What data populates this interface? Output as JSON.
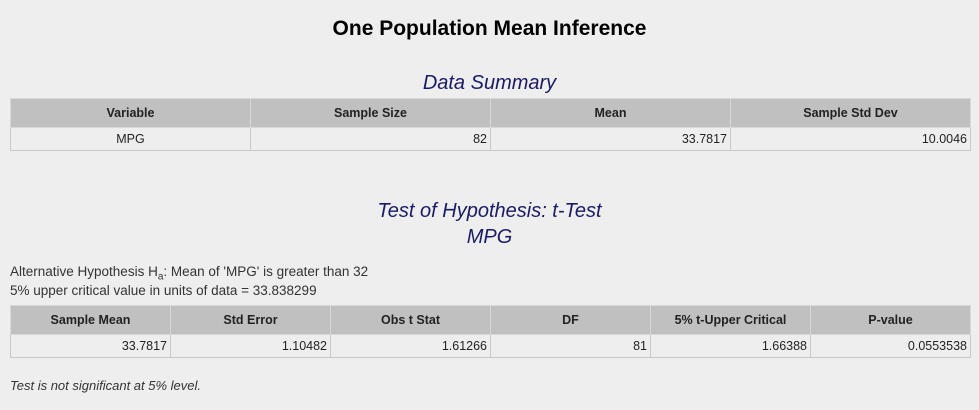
{
  "header": {
    "title": "One Population Mean Inference"
  },
  "summary": {
    "title": "Data Summary",
    "columns": [
      "Variable",
      "Sample Size",
      "Mean",
      "Sample Std Dev"
    ],
    "rows": [
      [
        "MPG",
        "82",
        "33.7817",
        "10.0046"
      ]
    ]
  },
  "test": {
    "title": "Test of Hypothesis: t-Test",
    "subtitle": "MPG",
    "hypothesis": {
      "prefix": "Alternative Hypothesis H",
      "subscript": "a",
      "suffix": ": Mean of 'MPG' is greater than 32"
    },
    "critical_note": "5% upper critical value in units of data = 33.838299",
    "columns": [
      "Sample Mean",
      "Std Error",
      "Obs t Stat",
      "DF",
      "5% t-Upper Critical",
      "P-value"
    ],
    "rows": [
      [
        "33.7817",
        "1.10482",
        "1.61266",
        "81",
        "1.66388",
        "0.0553538"
      ]
    ],
    "conclusion": "Test is not significant at 5% level."
  }
}
